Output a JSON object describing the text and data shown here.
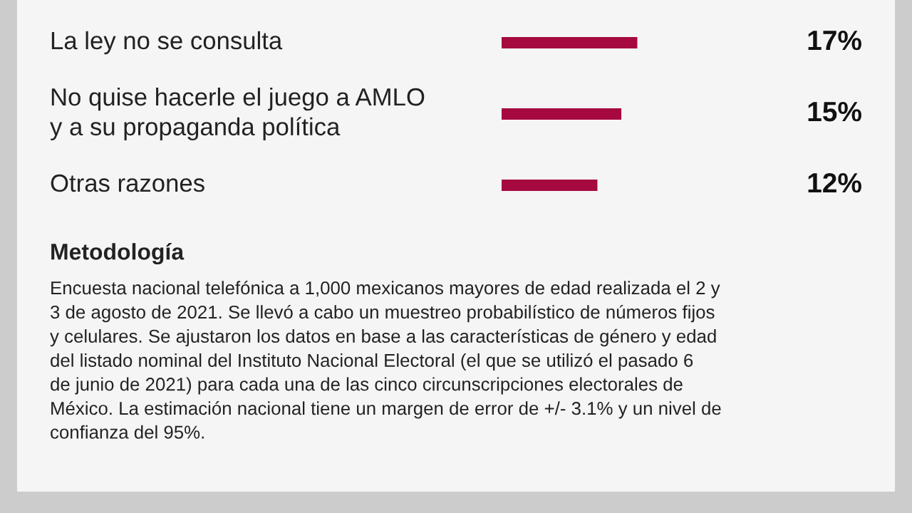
{
  "chart_data": {
    "type": "bar",
    "orientation": "horizontal",
    "categories": [
      "La ley no se consulta",
      "No quise hacerle el juego a AMLO\ny a su propaganda política",
      "Otras razones"
    ],
    "values": [
      17,
      15,
      12
    ],
    "color": "#a5093f",
    "value_labels": [
      "17%",
      "15%",
      "12%"
    ],
    "tick_labels": false,
    "annotations": [
      "Metodología",
      "Encuesta nacional telefónica a 1,000 mexicanos mayores de edad realizada el 2 y\n3 de agosto de 2021. Se llevó a cabo un muestreo probabilístico de números fijos\ny celulares. Se ajustaron los datos en base a las características de género y edad\ndel listado nominal del Instituto Nacional Electoral (el que se utilizó el pasado 6\nde junio de 2021) para cada una de las cinco circunscripciones electorales de\nMéxico. La estimación nacional tiene un margen de error de +/- 3.1% y un nivel de\nconfianza del 95%."
    ]
  }
}
